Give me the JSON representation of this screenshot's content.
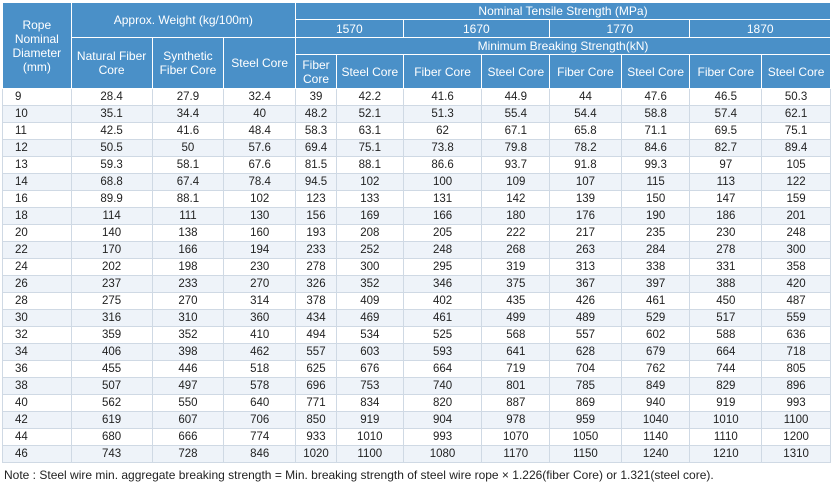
{
  "header": {
    "rope_diameter": "Rope Nominal Diameter (mm)",
    "approx_weight": "Approx. Weight (kg/100m)",
    "nominal_tensile": "Nominal Tensile Strength  (MPa)",
    "grades": [
      "1570",
      "1670",
      "1770",
      "1870"
    ],
    "min_breaking": "Minimum Breaking Strength(kN)",
    "weight_cols": [
      "Natural Fiber Core",
      "Synthetic Fiber Core",
      "Steel Core"
    ],
    "strength_cols": [
      "Fiber Core",
      "Steel Core",
      "Fiber Core",
      "Steel Core",
      "Fiber Core",
      "Steel Core",
      "Fiber Core",
      "Steel Core"
    ]
  },
  "rows": [
    [
      "9",
      "28.4",
      "27.9",
      "32.4",
      "39",
      "42.2",
      "41.6",
      "44.9",
      "44",
      "47.6",
      "46.5",
      "50.3"
    ],
    [
      "10",
      "35.1",
      "34.4",
      "40",
      "48.2",
      "52.1",
      "51.3",
      "55.4",
      "54.4",
      "58.8",
      "57.4",
      "62.1"
    ],
    [
      "11",
      "42.5",
      "41.6",
      "48.4",
      "58.3",
      "63.1",
      "62",
      "67.1",
      "65.8",
      "71.1",
      "69.5",
      "75.1"
    ],
    [
      "12",
      "50.5",
      "50",
      "57.6",
      "69.4",
      "75.1",
      "73.8",
      "79.8",
      "78.2",
      "84.6",
      "82.7",
      "89.4"
    ],
    [
      "13",
      "59.3",
      "58.1",
      "67.6",
      "81.5",
      "88.1",
      "86.6",
      "93.7",
      "91.8",
      "99.3",
      "97",
      "105"
    ],
    [
      "14",
      "68.8",
      "67.4",
      "78.4",
      "94.5",
      "102",
      "100",
      "109",
      "107",
      "115",
      "113",
      "122"
    ],
    [
      "16",
      "89.9",
      "88.1",
      "102",
      "123",
      "133",
      "131",
      "142",
      "139",
      "150",
      "147",
      "159"
    ],
    [
      "18",
      "114",
      "111",
      "130",
      "156",
      "169",
      "166",
      "180",
      "176",
      "190",
      "186",
      "201"
    ],
    [
      "20",
      "140",
      "138",
      "160",
      "193",
      "208",
      "205",
      "222",
      "217",
      "235",
      "230",
      "248"
    ],
    [
      "22",
      "170",
      "166",
      "194",
      "233",
      "252",
      "248",
      "268",
      "263",
      "284",
      "278",
      "300"
    ],
    [
      "24",
      "202",
      "198",
      "230",
      "278",
      "300",
      "295",
      "319",
      "313",
      "338",
      "331",
      "358"
    ],
    [
      "26",
      "237",
      "233",
      "270",
      "326",
      "352",
      "346",
      "375",
      "367",
      "397",
      "388",
      "420"
    ],
    [
      "28",
      "275",
      "270",
      "314",
      "378",
      "409",
      "402",
      "435",
      "426",
      "461",
      "450",
      "487"
    ],
    [
      "30",
      "316",
      "310",
      "360",
      "434",
      "469",
      "461",
      "499",
      "489",
      "529",
      "517",
      "559"
    ],
    [
      "32",
      "359",
      "352",
      "410",
      "494",
      "534",
      "525",
      "568",
      "557",
      "602",
      "588",
      "636"
    ],
    [
      "34",
      "406",
      "398",
      "462",
      "557",
      "603",
      "593",
      "641",
      "628",
      "679",
      "664",
      "718"
    ],
    [
      "36",
      "455",
      "446",
      "518",
      "625",
      "676",
      "664",
      "719",
      "704",
      "762",
      "744",
      "805"
    ],
    [
      "38",
      "507",
      "497",
      "578",
      "696",
      "753",
      "740",
      "801",
      "785",
      "849",
      "829",
      "896"
    ],
    [
      "40",
      "562",
      "550",
      "640",
      "771",
      "834",
      "820",
      "887",
      "869",
      "940",
      "919",
      "993"
    ],
    [
      "42",
      "619",
      "607",
      "706",
      "850",
      "919",
      "904",
      "978",
      "959",
      "1040",
      "1010",
      "1100"
    ],
    [
      "44",
      "680",
      "666",
      "774",
      "933",
      "1010",
      "993",
      "1070",
      "1050",
      "1140",
      "1110",
      "1200"
    ],
    [
      "46",
      "743",
      "728",
      "846",
      "1020",
      "1100",
      "1080",
      "1170",
      "1150",
      "1240",
      "1210",
      "1310"
    ]
  ],
  "note": "Note :   Steel wire min. aggregate breaking strength = Min. breaking strength of steel wire rope × 1.226(fiber Core) or 1.321(steel core).",
  "colors": {
    "header_bg": "#4a90c8",
    "row_alt_bg": "#eef3f9",
    "border": "#cfd9e4"
  }
}
